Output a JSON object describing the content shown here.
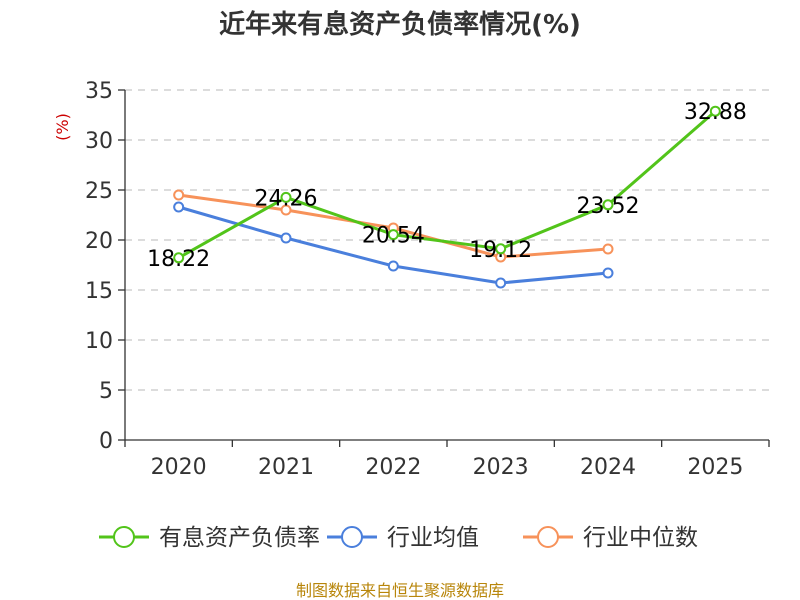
{
  "chart_data": {
    "type": "line",
    "title": "近年来有息资产负债率情况(%)",
    "ylabel": "(%)",
    "xlabel": "",
    "ylim": [
      0,
      35
    ],
    "yticks": [
      0,
      5,
      10,
      15,
      20,
      25,
      30,
      35
    ],
    "categories": [
      "2020",
      "2021",
      "2022",
      "2023",
      "2024",
      "2025"
    ],
    "grid": true,
    "legend_position": "bottom",
    "series": [
      {
        "name": "有息资产负债率",
        "color": "#52c41a",
        "values": [
          18.22,
          24.26,
          20.54,
          19.12,
          23.52,
          32.88
        ],
        "show_labels": true
      },
      {
        "name": "行业均值",
        "color": "#4a7fdc",
        "values": [
          23.3,
          20.2,
          17.4,
          15.7,
          16.7,
          null
        ],
        "show_labels": false
      },
      {
        "name": "行业中位数",
        "color": "#f7925a",
        "values": [
          24.5,
          23.0,
          21.2,
          18.3,
          19.1,
          null
        ],
        "show_labels": false
      }
    ]
  },
  "source": "制图数据来自恒生聚源数据库"
}
